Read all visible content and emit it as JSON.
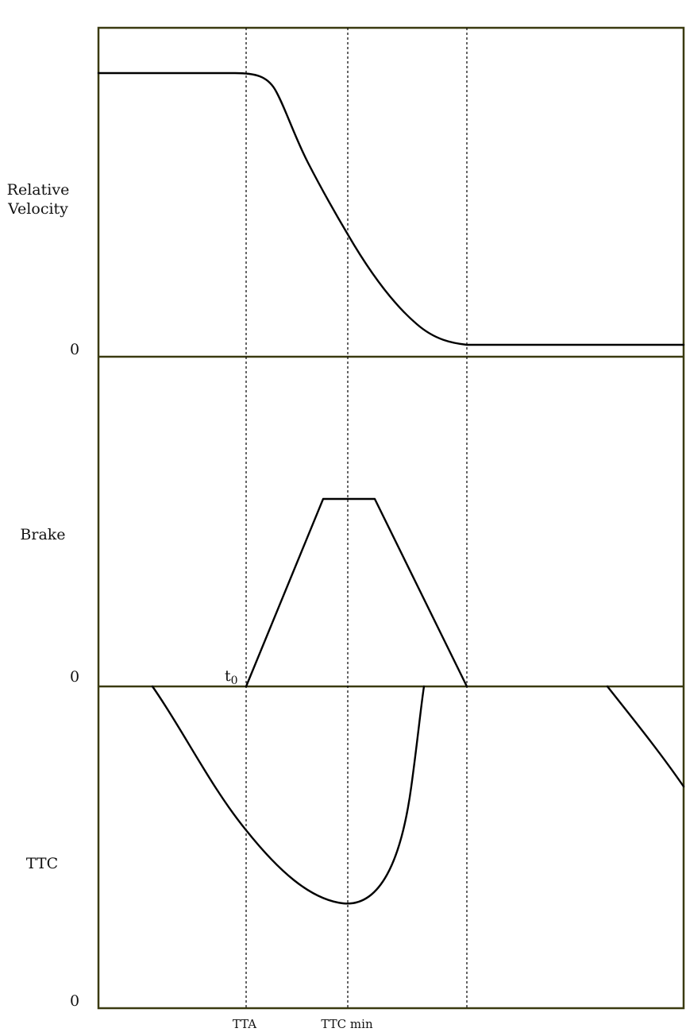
{
  "panels": {
    "velocity": {
      "label_line1": "Relative",
      "label_line2": "Velocity",
      "zero": "0"
    },
    "brake": {
      "label": "Brake",
      "zero": "0",
      "start_marker": "t",
      "start_marker_sub": "0"
    },
    "ttc": {
      "label": "TTC",
      "zero": "0"
    }
  },
  "markers": {
    "tta": "TTA",
    "ttc_min": "TTC min"
  },
  "colors": {
    "frame": "#3a3a10",
    "curve": "#000000"
  }
}
